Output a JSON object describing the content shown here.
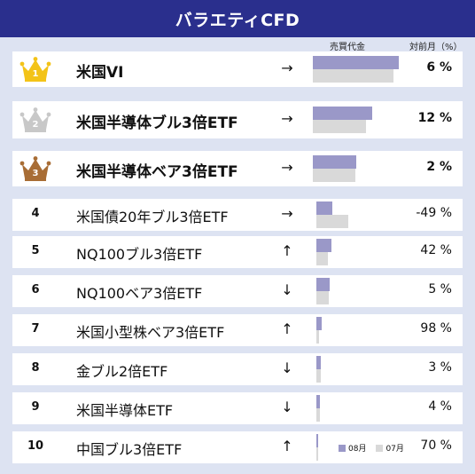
{
  "title": "バラエティCFD",
  "columns": {
    "trading_value": "売買代金",
    "mom": "対前月（%）"
  },
  "legend": {
    "current": "08月",
    "previous": "07月",
    "current_color": "#9a98c8",
    "previous_color": "#d9d9d9"
  },
  "crown_colors": {
    "gold": "#f3c318",
    "silver": "#c8c8c8",
    "bronze": "#a86d35"
  },
  "rankings": [
    {
      "rank": "1",
      "name": "米国VI",
      "arrow": "→",
      "bar_current": 1.0,
      "bar_previous": 0.94,
      "change": "6 %"
    },
    {
      "rank": "2",
      "name": "米国半導体ブル3倍ETF",
      "arrow": "→",
      "bar_current": 0.69,
      "bar_previous": 0.62,
      "change": "12 %"
    },
    {
      "rank": "3",
      "name": "米国半導体ベア3倍ETF",
      "arrow": "→",
      "bar_current": 0.51,
      "bar_previous": 0.49,
      "change": "2 %"
    },
    {
      "rank": "4",
      "name": "米国債20年ブル3倍ETF",
      "arrow": "→",
      "bar_current": 0.19,
      "bar_previous": 0.37,
      "change": "-49 %"
    },
    {
      "rank": "5",
      "name": "NQ100ブル3倍ETF",
      "arrow": "↑",
      "bar_current": 0.18,
      "bar_previous": 0.13,
      "change": "42 %"
    },
    {
      "rank": "6",
      "name": "NQ100ベア3倍ETF",
      "arrow": "↓",
      "bar_current": 0.15,
      "bar_previous": 0.14,
      "change": "5 %"
    },
    {
      "rank": "7",
      "name": "米国小型株ベア3倍ETF",
      "arrow": "↑",
      "bar_current": 0.06,
      "bar_previous": 0.03,
      "change": "98 %"
    },
    {
      "rank": "8",
      "name": "金ブル2倍ETF",
      "arrow": "↓",
      "bar_current": 0.05,
      "bar_previous": 0.05,
      "change": "3 %"
    },
    {
      "rank": "9",
      "name": "米国半導体ETF",
      "arrow": "↓",
      "bar_current": 0.04,
      "bar_previous": 0.04,
      "change": "4 %"
    },
    {
      "rank": "10",
      "name": "中国ブル3倍ETF",
      "arrow": "↑",
      "bar_current": 0.02,
      "bar_previous": 0.01,
      "change": "70 %"
    }
  ]
}
